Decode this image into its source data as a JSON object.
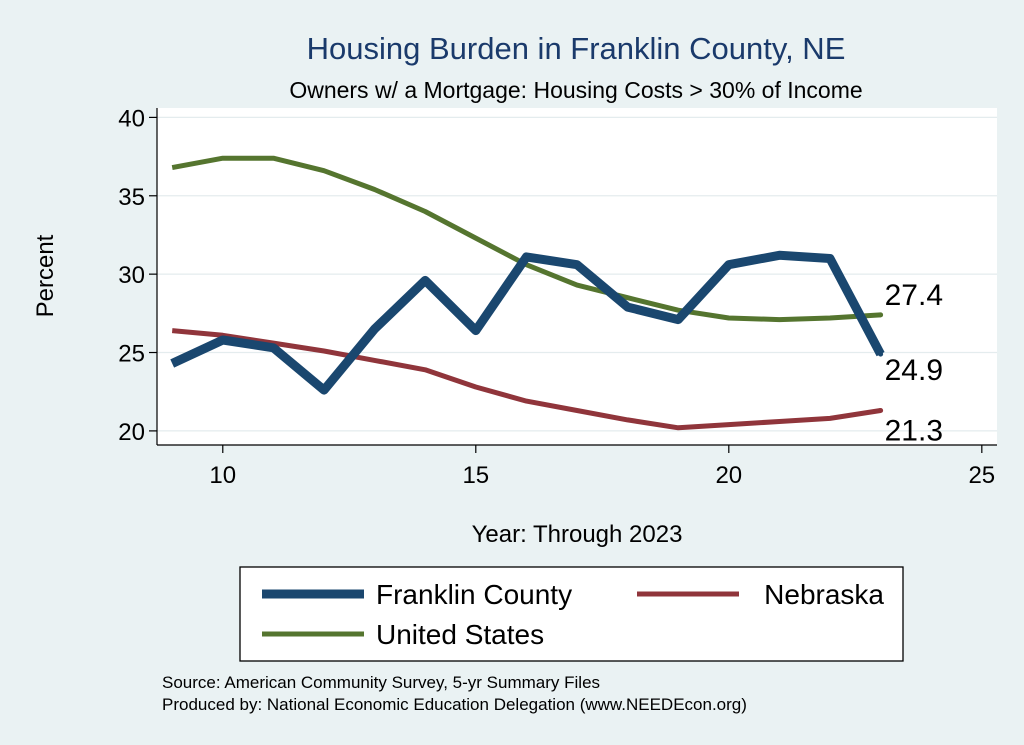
{
  "colors": {
    "background": "#eaf2f3",
    "plot_background": "#ffffff",
    "grid": "#e4ecee",
    "franklin": "#1a476f",
    "nebraska": "#90353b",
    "us": "#55752f"
  },
  "chart_data": {
    "type": "line",
    "title": "Housing Burden in Franklin County, NE",
    "subtitle": "Owners w/ a Mortgage: Housing Costs > 30% of Income",
    "xlabel": "Year: Through 2023",
    "ylabel": "Percent",
    "xlim": [
      8.7,
      25.3
    ],
    "ylim": [
      19.1,
      40.6
    ],
    "xticks": [
      10,
      15,
      20,
      25
    ],
    "yticks": [
      20,
      25,
      30,
      35,
      40
    ],
    "grid": true,
    "legend_position": "bottom",
    "x": [
      9,
      10,
      11,
      12,
      13,
      14,
      15,
      16,
      17,
      18,
      19,
      20,
      21,
      22,
      23
    ],
    "series": [
      {
        "name": "Franklin County",
        "color": "#1a476f",
        "values": [
          24.3,
          25.8,
          25.3,
          22.6,
          26.5,
          29.6,
          26.4,
          31.1,
          30.6,
          27.9,
          27.1,
          30.6,
          31.2,
          31.0,
          24.9
        ],
        "end_label": "24.9"
      },
      {
        "name": "Nebraska",
        "color": "#90353b",
        "values": [
          26.4,
          26.1,
          25.6,
          25.1,
          24.5,
          23.9,
          22.8,
          21.9,
          21.3,
          20.7,
          20.2,
          20.4,
          20.6,
          20.8,
          21.3
        ],
        "end_label": "21.3"
      },
      {
        "name": "United States",
        "color": "#55752f",
        "values": [
          36.8,
          37.4,
          37.4,
          36.6,
          35.4,
          34.0,
          32.3,
          30.6,
          29.3,
          28.5,
          27.7,
          27.2,
          27.1,
          27.2,
          27.4
        ],
        "end_label": "27.4"
      }
    ],
    "notes": [
      "Source: American Community Survey, 5-yr Summary Files",
      "Produced by: National Economic Education Delegation (www.NEEDEcon.org)"
    ]
  }
}
